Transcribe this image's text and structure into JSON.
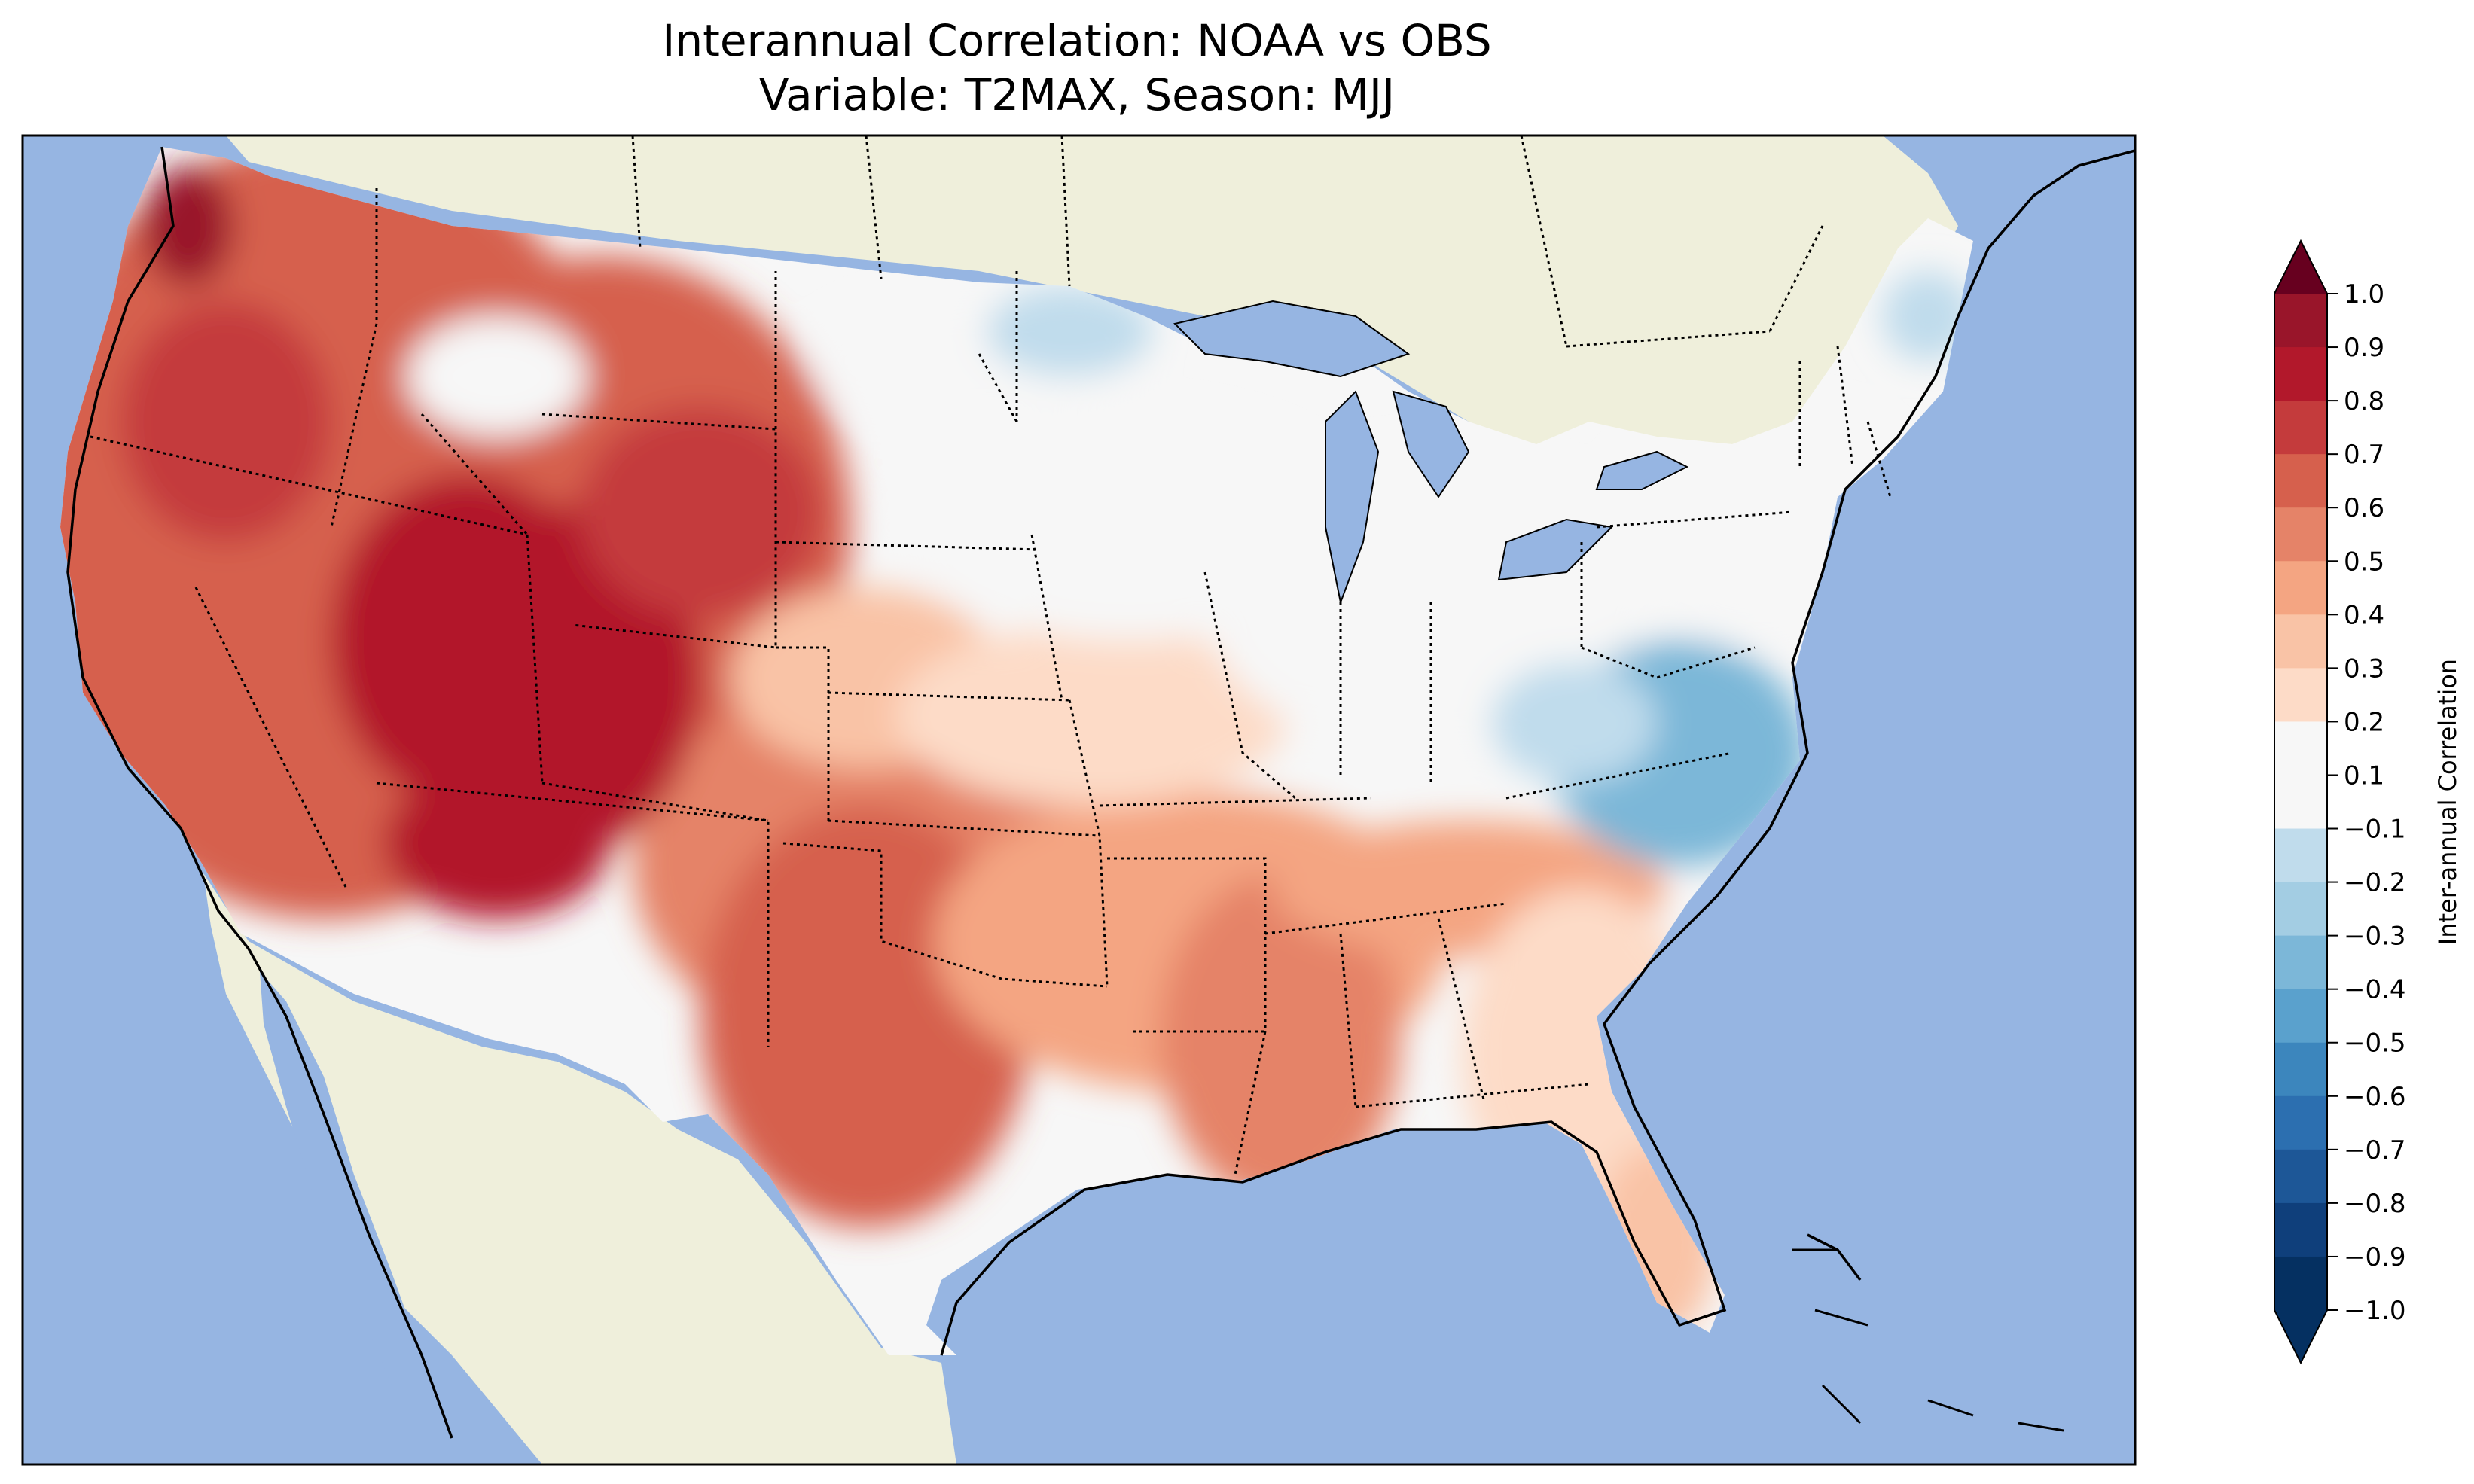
{
  "title": {
    "line1": "Interannual Correlation: NOAA vs OBS",
    "line2": "Variable: T2MAX, Season: MJJ"
  },
  "colors": {
    "ocean": "#96b5e2",
    "land": "#efefdb",
    "border": "#000000"
  },
  "colorbar": {
    "label": "Inter-annual Correlation",
    "ticks": [
      "1.0",
      "0.9",
      "0.8",
      "0.7",
      "0.6",
      "0.5",
      "0.4",
      "0.3",
      "0.2",
      "0.1",
      "−0.1",
      "−0.2",
      "−0.3",
      "−0.4",
      "−0.5",
      "−0.6",
      "−0.7",
      "−0.8",
      "−0.9",
      "−1.0"
    ],
    "bins": [
      "#67001f",
      "#99152a",
      "#b2182b",
      "#c43b3c",
      "#d6604d",
      "#e58368",
      "#f4a582",
      "#f9c3a6",
      "#fddbc7",
      "#f7f7f7",
      "#dce9f2",
      "#c0dcec",
      "#a3cde3",
      "#7cb7d8",
      "#5aa1cd",
      "#3c86bd",
      "#2c6fb0",
      "#1d5797",
      "#0f3f7b",
      "#053061"
    ],
    "extend": "both"
  }
}
